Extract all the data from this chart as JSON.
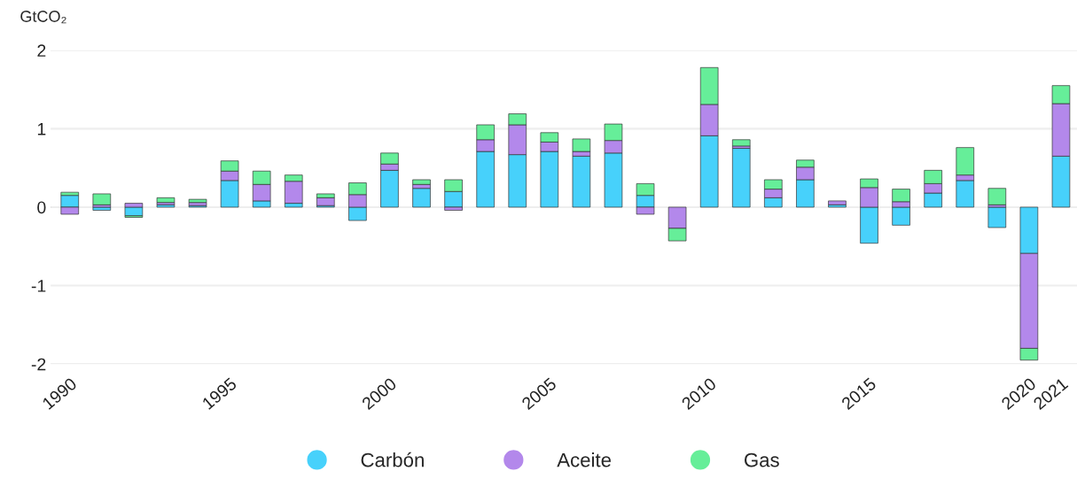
{
  "chart_data": {
    "type": "bar",
    "stacked": true,
    "ylabel": "GtCO₂",
    "categories": [
      "1990",
      null,
      null,
      null,
      null,
      "1995",
      null,
      null,
      null,
      null,
      "2000",
      null,
      null,
      null,
      null,
      "2005",
      null,
      null,
      null,
      null,
      "2010",
      null,
      null,
      null,
      null,
      "2015",
      null,
      null,
      null,
      null,
      "2020",
      "2021"
    ],
    "series": [
      {
        "name": "Carbón",
        "color": "#47d1fb",
        "values": [
          0.15,
          -0.04,
          -0.11,
          0.03,
          0.02,
          0.34,
          0.08,
          0.05,
          0.02,
          -0.17,
          0.47,
          0.24,
          0.2,
          0.71,
          0.67,
          0.71,
          0.65,
          0.69,
          0.15,
          null,
          0.91,
          0.75,
          0.12,
          0.35,
          0.03,
          -0.46,
          -0.23,
          0.18,
          0.34,
          -0.26,
          -0.59,
          0.65
        ]
      },
      {
        "name": "Aceite",
        "color": "#b388eb",
        "values": [
          -0.09,
          0.03,
          0.05,
          0.03,
          0.04,
          0.12,
          0.21,
          0.28,
          0.1,
          0.16,
          0.08,
          0.05,
          -0.04,
          0.15,
          0.38,
          0.12,
          0.06,
          0.16,
          -0.09,
          -0.27,
          0.4,
          0.03,
          0.11,
          0.16,
          0.05,
          0.25,
          0.07,
          0.12,
          0.07,
          0.03,
          -1.21,
          0.67
        ]
      },
      {
        "name": "Gas",
        "color": "#66ee99",
        "values": [
          0.04,
          0.14,
          -0.02,
          0.06,
          0.04,
          0.13,
          0.17,
          0.08,
          0.05,
          0.15,
          0.14,
          0.06,
          0.15,
          0.19,
          0.14,
          0.12,
          0.16,
          0.21,
          0.15,
          -0.16,
          0.47,
          0.08,
          0.12,
          0.09,
          null,
          0.11,
          0.16,
          0.17,
          0.35,
          0.21,
          -0.15,
          0.23
        ]
      }
    ],
    "ylim": [
      -2,
      2
    ],
    "yticks": [
      {
        "value": -2,
        "label": "-2"
      },
      {
        "value": -1,
        "label": "-1"
      },
      0,
      1,
      2
    ],
    "grid": "y",
    "legend": "bottom"
  }
}
